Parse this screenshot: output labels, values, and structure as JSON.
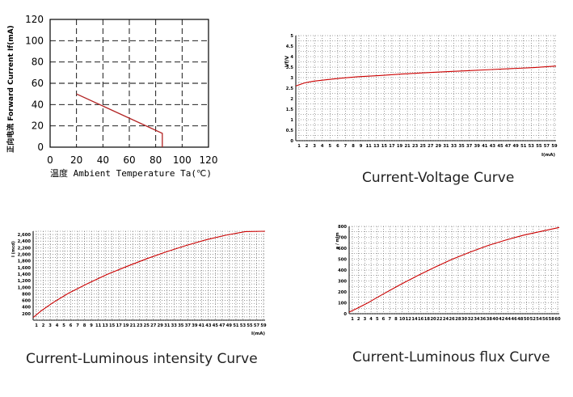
{
  "chart_data": [
    {
      "type": "line",
      "title": "",
      "xlabel": "温度 Ambient Temperature Ta(℃)",
      "ylabel": "正向电流 Forward Current If(mA)",
      "x_ticks": [
        "0",
        "20",
        "40",
        "60",
        "80",
        "100",
        "120"
      ],
      "y_ticks": [
        "0",
        "20",
        "40",
        "60",
        "80",
        "100",
        "120"
      ],
      "xlim": [
        0,
        120
      ],
      "ylim": [
        0,
        120
      ],
      "grid": true,
      "series": [
        {
          "x": [
            20,
            85,
            85
          ],
          "y": [
            50,
            13,
            0
          ]
        }
      ],
      "color": "#b22222"
    },
    {
      "type": "line",
      "title": "Current-Voltage Curve",
      "xlabel": "I(mA)",
      "ylabel": "Vf/V",
      "x_ticks": [
        "1",
        "2",
        "3",
        "4",
        "5",
        "6",
        "7",
        "8",
        "9",
        "11",
        "13",
        "15",
        "17",
        "19",
        "21",
        "23",
        "25",
        "27",
        "29",
        "31",
        "33",
        "35",
        "37",
        "39",
        "41",
        "43",
        "45",
        "47",
        "49",
        "51",
        "53",
        "55",
        "57",
        "59"
      ],
      "y_ticks": [
        "0",
        "0.5",
        "1",
        "1.5",
        "2",
        "2.5",
        "3",
        "3.5",
        "4",
        "4.5",
        "5"
      ],
      "xlim": [
        1,
        60
      ],
      "ylim": [
        0,
        5
      ],
      "grid": true,
      "series": [
        {
          "x": [
            1,
            3,
            5,
            8,
            11,
            15,
            20,
            25,
            30,
            35,
            40,
            45,
            50,
            55,
            60
          ],
          "y": [
            2.6,
            2.75,
            2.83,
            2.9,
            2.97,
            3.04,
            3.1,
            3.17,
            3.23,
            3.28,
            3.33,
            3.38,
            3.43,
            3.48,
            3.55
          ]
        }
      ],
      "color": "#cc0000"
    },
    {
      "type": "line",
      "title": "Current-Luminous intensity Curve",
      "xlabel": "I(mA)",
      "ylabel": "I (mcd)",
      "x_ticks": [
        "1",
        "2",
        "3",
        "4",
        "5",
        "6",
        "7",
        "8",
        "9",
        "11",
        "13",
        "15",
        "17",
        "19",
        "21",
        "23",
        "25",
        "27",
        "29",
        "31",
        "33",
        "35",
        "37",
        "39",
        "41",
        "43",
        "45",
        "47",
        "49",
        "51",
        "53",
        "55",
        "57",
        "59"
      ],
      "y_ticks": [
        "200",
        "400",
        "600",
        "800",
        "1,000",
        "1,200",
        "1,400",
        "1,600",
        "1,800",
        "2,000",
        "2,200",
        "2,400",
        "2,600"
      ],
      "xlim": [
        1,
        60
      ],
      "ylim": [
        0,
        2700
      ],
      "grid": true,
      "series": [
        {
          "x": [
            1,
            3,
            6,
            10,
            15,
            20,
            25,
            30,
            35,
            40,
            45,
            50,
            55,
            60
          ],
          "y": [
            80,
            280,
            530,
            820,
            1120,
            1400,
            1640,
            1870,
            2080,
            2270,
            2440,
            2580,
            2690,
            2700
          ]
        }
      ],
      "color": "#cc0000"
    },
    {
      "type": "line",
      "title": "Current-Luminous flux Curve",
      "xlabel": "I(mA)",
      "ylabel": "φ / mlm",
      "x_ticks": [
        "1",
        "2",
        "3",
        "4",
        "5",
        "6",
        "7",
        "8",
        "10",
        "12",
        "14",
        "16",
        "18",
        "20",
        "22",
        "24",
        "26",
        "28",
        "30",
        "32",
        "34",
        "36",
        "38",
        "40",
        "42",
        "44",
        "46",
        "48",
        "50",
        "52",
        "54",
        "56",
        "58",
        "60"
      ],
      "y_ticks": [
        "0",
        "100",
        "200",
        "300",
        "400",
        "500",
        "600",
        "700",
        "800"
      ],
      "xlim": [
        1,
        60
      ],
      "ylim": [
        0,
        800
      ],
      "grid": true,
      "series": [
        {
          "x": [
            1,
            3,
            6,
            10,
            15,
            20,
            25,
            30,
            35,
            40,
            45,
            50,
            55,
            60
          ],
          "y": [
            15,
            45,
            95,
            170,
            260,
            345,
            425,
            500,
            565,
            625,
            675,
            720,
            755,
            790
          ]
        }
      ],
      "color": "#cc0000"
    }
  ]
}
